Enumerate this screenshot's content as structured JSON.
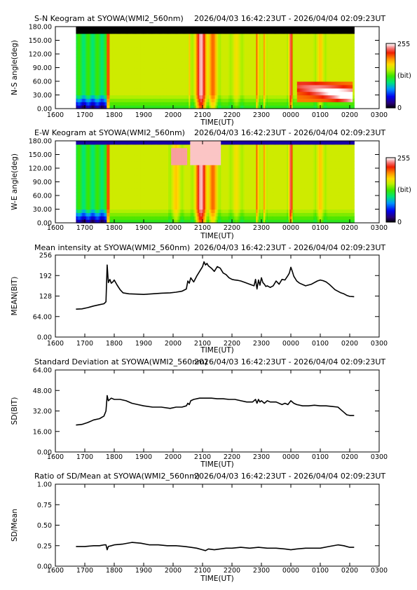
{
  "chart_data": [
    {
      "type": "heatmap",
      "title": "S-N Keogram at SYOWA(WMI2_560nm)",
      "time_range": "2026/04/03 16:42:23UT - 2026/04/04 02:09:23UT",
      "xlabel": "TIME(UT)",
      "ylabel": "N-S angle(deg)",
      "xticks": [
        "1600",
        "1700",
        "1800",
        "1900",
        "2000",
        "2100",
        "2200",
        "2300",
        "0000",
        "0100",
        "0200",
        "0300"
      ],
      "yticks": [
        "0.00",
        "30.00",
        "60.00",
        "90.00",
        "120.00",
        "150.00",
        "180.00"
      ],
      "xlim": [
        16.0,
        27.0
      ],
      "ylim": [
        0,
        180
      ],
      "data_x_range": [
        16.7,
        26.15
      ],
      "colorbar": {
        "min": "0",
        "max": "255",
        "unit": "(bit)"
      },
      "bright_bands": [
        {
          "t": 17.72,
          "w": 0.12,
          "v": 0.7
        },
        {
          "t": 20.55,
          "w": 0.1,
          "v": 0.75
        },
        {
          "t": 20.95,
          "w": 0.35,
          "v": 0.98
        },
        {
          "t": 21.35,
          "w": 0.3,
          "v": 0.85
        },
        {
          "t": 22.15,
          "w": 0.3,
          "v": 0.7
        },
        {
          "t": 22.85,
          "w": 0.1,
          "v": 0.85
        },
        {
          "t": 23.1,
          "w": 0.1,
          "v": 0.8
        },
        {
          "t": 24.0,
          "w": 0.12,
          "v": 0.95
        },
        {
          "t": 25.0,
          "w": 0.25,
          "v": 0.75
        }
      ]
    },
    {
      "type": "heatmap",
      "title": "E-W Keogram at SYOWA(WMI2_560nm)",
      "time_range": "2026/04/03 16:42:23UT - 2026/04/04 02:09:23UT",
      "xlabel": "TIME(UT)",
      "ylabel": "W-E angle(deg)",
      "xticks": [
        "1600",
        "1700",
        "1800",
        "1900",
        "2000",
        "2100",
        "2200",
        "2300",
        "0000",
        "0100",
        "0200",
        "0300"
      ],
      "yticks": [
        "0.00",
        "30.00",
        "60.00",
        "90.00",
        "120.00",
        "150.00",
        "180.00"
      ],
      "xlim": [
        16.0,
        27.0
      ],
      "ylim": [
        0,
        180
      ],
      "data_x_range": [
        16.7,
        26.15
      ],
      "colorbar": {
        "min": "0",
        "max": "255",
        "unit": "(bit)"
      },
      "bright_bands": [
        {
          "t": 17.72,
          "w": 0.12,
          "v": 0.7
        },
        {
          "t": 20.1,
          "w": 0.3,
          "v": 0.75
        },
        {
          "t": 20.95,
          "w": 0.35,
          "v": 0.98
        },
        {
          "t": 21.35,
          "w": 0.3,
          "v": 0.85
        },
        {
          "t": 22.15,
          "w": 0.3,
          "v": 0.7
        },
        {
          "t": 22.85,
          "w": 0.1,
          "v": 0.85
        },
        {
          "t": 23.1,
          "w": 0.1,
          "v": 0.8
        },
        {
          "t": 24.0,
          "w": 0.12,
          "v": 0.95
        },
        {
          "t": 25.0,
          "w": 0.25,
          "v": 0.75
        }
      ]
    },
    {
      "type": "line",
      "title": "Mean intensity at SYOWA(WMI2_560nm)",
      "time_range": "2026/04/03 16:42:23UT - 2026/04/04 02:09:23UT",
      "xlabel": "TIME(UT)",
      "ylabel": "MEAN(BIT)",
      "xticks": [
        "1600",
        "1700",
        "1800",
        "1900",
        "2000",
        "2100",
        "2200",
        "2300",
        "0000",
        "0100",
        "0200",
        "0300"
      ],
      "yticks": [
        "0.00",
        "64.00",
        "128",
        "192",
        "256"
      ],
      "xlim": [
        16.0,
        27.0
      ],
      "ylim": [
        0,
        256
      ],
      "series": [
        {
          "x": [
            16.7,
            16.9,
            17.1,
            17.3,
            17.5,
            17.65,
            17.72,
            17.76,
            17.8,
            17.85,
            17.9,
            17.95,
            18.0,
            18.1,
            18.2,
            18.3,
            18.5,
            18.8,
            19.0,
            19.3,
            19.6,
            19.9,
            20.1,
            20.3,
            20.45,
            20.5,
            20.55,
            20.6,
            20.7,
            20.8,
            20.9,
            21.0,
            21.05,
            21.1,
            21.15,
            21.2,
            21.3,
            21.4,
            21.5,
            21.6,
            21.7,
            21.8,
            21.9,
            22.0,
            22.1,
            22.2,
            22.3,
            22.45,
            22.6,
            22.75,
            22.8,
            22.85,
            22.9,
            22.95,
            23.0,
            23.05,
            23.1,
            23.15,
            23.2,
            23.3,
            23.4,
            23.5,
            23.6,
            23.7,
            23.8,
            23.9,
            23.95,
            24.0,
            24.05,
            24.1,
            24.2,
            24.3,
            24.5,
            24.7,
            24.9,
            25.0,
            25.1,
            25.2,
            25.3,
            25.5,
            25.7,
            25.8,
            25.9,
            26.0,
            26.15
          ],
          "y": [
            87,
            88,
            92,
            97,
            101,
            104,
            110,
            225,
            170,
            180,
            168,
            172,
            178,
            162,
            148,
            138,
            135,
            134,
            133,
            135,
            137,
            138,
            140,
            143,
            150,
            175,
            168,
            185,
            172,
            190,
            205,
            220,
            235,
            225,
            230,
            222,
            215,
            205,
            220,
            215,
            200,
            195,
            185,
            180,
            178,
            177,
            175,
            170,
            165,
            160,
            180,
            150,
            178,
            162,
            185,
            170,
            165,
            158,
            160,
            155,
            160,
            175,
            165,
            180,
            178,
            192,
            200,
            218,
            205,
            190,
            175,
            168,
            160,
            165,
            175,
            178,
            176,
            172,
            165,
            148,
            138,
            135,
            130,
            127,
            126
          ]
        }
      ]
    },
    {
      "type": "line",
      "title": "Standard Deviation at SYOWA(WMI2_560nm)",
      "time_range": "2026/04/03 16:42:23UT - 2026/04/04 02:09:23UT",
      "xlabel": "TIME(UT)",
      "ylabel": "SD(BIT)",
      "xticks": [
        "1600",
        "1700",
        "1800",
        "1900",
        "2000",
        "2100",
        "2200",
        "2300",
        "0000",
        "0100",
        "0200",
        "0300"
      ],
      "yticks": [
        "0.00",
        "16.00",
        "32.00",
        "48.00",
        "64.00"
      ],
      "xlim": [
        16.0,
        27.0
      ],
      "ylim": [
        0,
        64
      ],
      "series": [
        {
          "x": [
            16.7,
            16.9,
            17.1,
            17.3,
            17.5,
            17.65,
            17.72,
            17.76,
            17.8,
            17.9,
            18.0,
            18.2,
            18.4,
            18.6,
            18.8,
            19.0,
            19.3,
            19.6,
            19.9,
            20.1,
            20.3,
            20.45,
            20.5,
            20.55,
            20.6,
            20.7,
            20.9,
            21.1,
            21.3,
            21.5,
            21.7,
            21.9,
            22.1,
            22.3,
            22.5,
            22.7,
            22.8,
            22.85,
            22.9,
            22.95,
            23.0,
            23.1,
            23.2,
            23.3,
            23.5,
            23.7,
            23.8,
            23.9,
            24.0,
            24.1,
            24.2,
            24.4,
            24.6,
            24.8,
            25.0,
            25.2,
            25.4,
            25.6,
            25.7,
            25.8,
            25.9,
            26.0,
            26.15
          ],
          "y": [
            21,
            21.5,
            23,
            25,
            26,
            28,
            32,
            44,
            40,
            42,
            41,
            41,
            40,
            38,
            37,
            36,
            35,
            35,
            34,
            35,
            35,
            36,
            38,
            37,
            40,
            41,
            42,
            42,
            42,
            41.5,
            41.5,
            41,
            41,
            40,
            39,
            39,
            41,
            38,
            41,
            39,
            40,
            38,
            40,
            39,
            39,
            37,
            38,
            37,
            40,
            38,
            37,
            36,
            36,
            36.5,
            36,
            36,
            35.5,
            35,
            33,
            31,
            29,
            28.5,
            28.5
          ]
        }
      ]
    },
    {
      "type": "line",
      "title": "Ratio of SD/Mean at SYOWA(WMI2_560nm)",
      "time_range": "2026/04/03 16:42:23UT - 2026/04/04 02:09:23UT",
      "xlabel": "TIME(UT)",
      "ylabel": "SD/Mean",
      "xticks": [
        "1600",
        "1700",
        "1800",
        "1900",
        "2000",
        "2100",
        "2200",
        "2300",
        "0000",
        "0100",
        "0200",
        "0300"
      ],
      "yticks": [
        "0.00",
        "0.25",
        "0.50",
        "0.75",
        "1.00"
      ],
      "xlim": [
        16.0,
        27.0
      ],
      "ylim": [
        0,
        1.0
      ],
      "series": [
        {
          "x": [
            16.7,
            17.0,
            17.3,
            17.5,
            17.65,
            17.72,
            17.76,
            17.8,
            17.9,
            18.0,
            18.3,
            18.6,
            18.9,
            19.2,
            19.5,
            19.8,
            20.1,
            20.4,
            20.6,
            20.8,
            21.0,
            21.1,
            21.2,
            21.4,
            21.6,
            21.8,
            22.0,
            22.3,
            22.6,
            22.9,
            23.2,
            23.5,
            23.8,
            24.0,
            24.2,
            24.5,
            24.8,
            25.0,
            25.3,
            25.6,
            25.8,
            26.0,
            26.15
          ],
          "y": [
            0.24,
            0.24,
            0.25,
            0.25,
            0.26,
            0.26,
            0.2,
            0.24,
            0.25,
            0.26,
            0.27,
            0.29,
            0.28,
            0.26,
            0.26,
            0.25,
            0.25,
            0.24,
            0.23,
            0.22,
            0.2,
            0.19,
            0.21,
            0.2,
            0.21,
            0.22,
            0.22,
            0.23,
            0.22,
            0.23,
            0.22,
            0.22,
            0.21,
            0.2,
            0.21,
            0.22,
            0.22,
            0.22,
            0.24,
            0.26,
            0.25,
            0.23,
            0.23
          ]
        }
      ]
    }
  ]
}
